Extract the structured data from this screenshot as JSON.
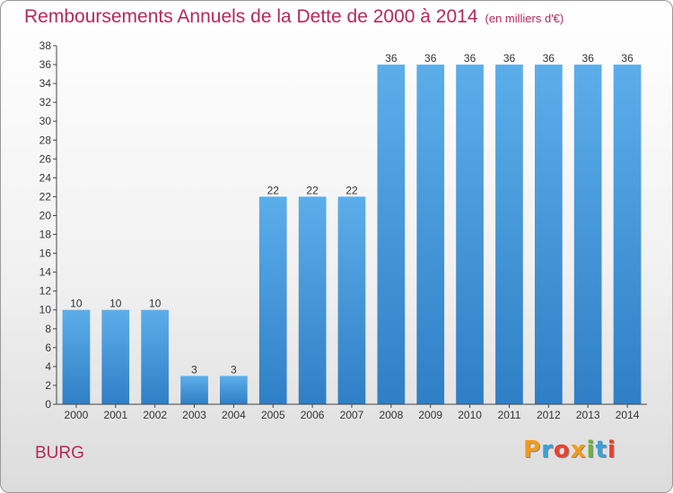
{
  "header": {
    "title": "Remboursements Annuels de la Dette de 2000 à 2014",
    "subtitle": "(en milliers d'€)"
  },
  "footer": {
    "commune": "BURG",
    "logo_text": "Proxiti"
  },
  "colors": {
    "bar_top": "#5caeea",
    "bar_bottom": "#2f7fc6",
    "title": "#b5285a",
    "logo": [
      "#f29a1e",
      "#3aa0d8",
      "#e8412f",
      "#f29a1e",
      "#6cb33f",
      "#3aa0d8",
      "#e8412f"
    ]
  },
  "chart_data": {
    "type": "bar",
    "title": "Remboursements Annuels de la Dette de 2000 à 2014",
    "subtitle": "(en milliers d'€)",
    "categories": [
      "2000",
      "2001",
      "2002",
      "2003",
      "2004",
      "2005",
      "2006",
      "2007",
      "2008",
      "2009",
      "2010",
      "2011",
      "2012",
      "2013",
      "2014"
    ],
    "values": [
      10,
      10,
      10,
      3,
      3,
      22,
      22,
      22,
      36,
      36,
      36,
      36,
      36,
      36,
      36
    ],
    "ylim": [
      0,
      38
    ],
    "yticks": [
      0,
      2,
      4,
      6,
      8,
      10,
      12,
      14,
      16,
      18,
      20,
      22,
      24,
      26,
      28,
      30,
      32,
      34,
      36,
      38
    ],
    "grid": false,
    "data_labels": true
  }
}
